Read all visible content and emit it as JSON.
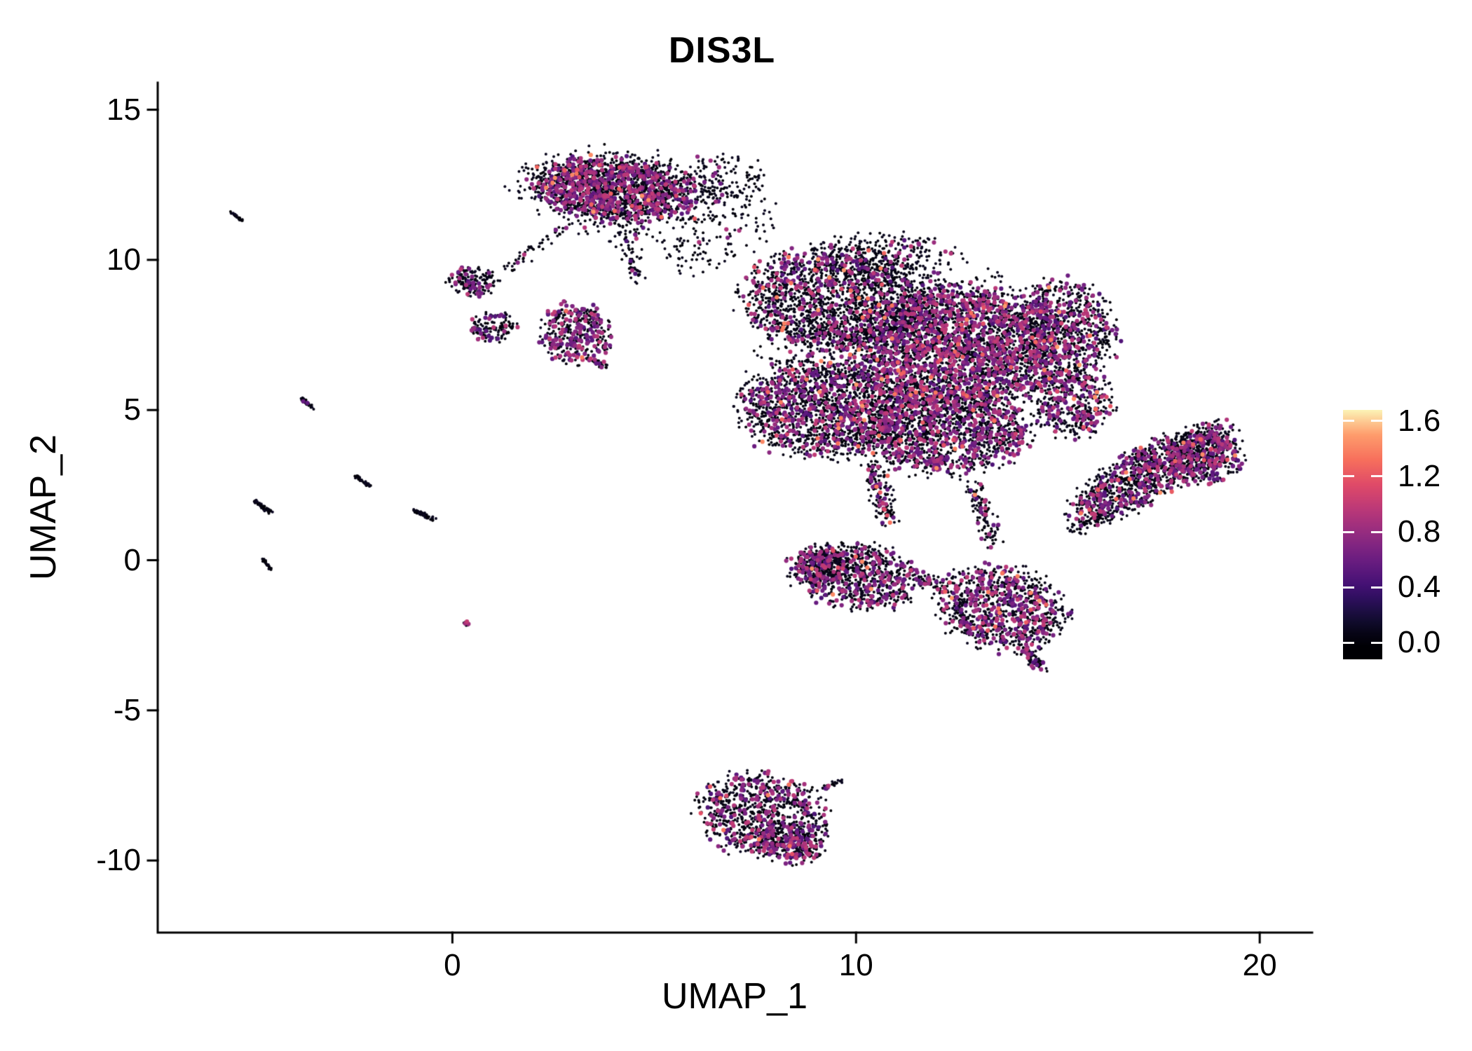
{
  "title": "DIS3L",
  "axes": {
    "x": {
      "label": "UMAP_1",
      "min": -7.3,
      "max": 21.3,
      "ticks": [
        {
          "v": 0,
          "label": "0"
        },
        {
          "v": 10,
          "label": "10"
        },
        {
          "v": 20,
          "label": "20"
        }
      ]
    },
    "y": {
      "label": "UMAP_2",
      "min": -12.4,
      "max": 15.9,
      "ticks": [
        {
          "v": 15,
          "label": "15"
        },
        {
          "v": 10,
          "label": "10"
        },
        {
          "v": 5,
          "label": "5"
        },
        {
          "v": 0,
          "label": "0"
        },
        {
          "v": -5,
          "label": "-5"
        },
        {
          "v": -10,
          "label": "-10"
        }
      ]
    }
  },
  "colorbar": {
    "vmin": -0.12,
    "vmax": 1.68,
    "value_scale_max": 1.7,
    "ticks": [
      {
        "v": 1.6,
        "label": "1.6"
      },
      {
        "v": 1.2,
        "label": "1.2"
      },
      {
        "v": 0.8,
        "label": "0.8"
      },
      {
        "v": 0.4,
        "label": "0.4"
      },
      {
        "v": 0.0,
        "label": "0.0"
      }
    ],
    "stops": [
      [
        0.0,
        "#000004"
      ],
      [
        0.111,
        "#140e36"
      ],
      [
        0.222,
        "#3b0f70"
      ],
      [
        0.333,
        "#641a80"
      ],
      [
        0.444,
        "#8c2981"
      ],
      [
        0.556,
        "#b73779"
      ],
      [
        0.667,
        "#de4968"
      ],
      [
        0.778,
        "#f7705c"
      ],
      [
        0.889,
        "#fe9f6d"
      ],
      [
        1.0,
        "#fcfdbf"
      ]
    ]
  },
  "chart_data": {
    "type": "scatter",
    "title": "DIS3L",
    "xlabel": "UMAP_1",
    "ylabel": "UMAP_2",
    "xlim": [
      -7.3,
      21.3
    ],
    "ylim": [
      -12.4,
      15.9
    ],
    "x_ticks": [
      0,
      10,
      20
    ],
    "y_ticks": [
      15,
      10,
      5,
      0,
      -5,
      -10
    ],
    "colorbar_ticks": [
      1.6,
      1.2,
      0.8,
      0.4,
      0.0
    ],
    "palette": "magma",
    "legend_position": "right",
    "grid": false,
    "note": "UMAP feature plot of gene expression; ~18000 cells approximated by generative clusters below",
    "seed": 20240613,
    "point_radius": {
      "low": 2.0,
      "colored": 3.1
    },
    "expression_bins": {
      "low": [
        0,
        0.12
      ],
      "mid": [
        0.45,
        1.0
      ],
      "high": [
        1.05,
        1.5
      ]
    },
    "clusters": [
      {
        "shape": "ellipse",
        "cx": 4.0,
        "cy": 12.35,
        "rx": 1.9,
        "ry": 1.0,
        "rot": -8,
        "n": 1500,
        "p_mid": 0.3,
        "p_hi": 0.015
      },
      {
        "shape": "ellipse",
        "cx": 4.2,
        "cy": 12.2,
        "rx": 2.6,
        "ry": 1.5,
        "rot": -8,
        "n": 420,
        "p_mid": 0.06,
        "p_hi": 0.003
      },
      {
        "shape": "ellipse",
        "cx": 6.7,
        "cy": 12.7,
        "rx": 1.0,
        "ry": 0.85,
        "rot": 0,
        "n": 120,
        "p_mid": 0.05,
        "p_hi": 0
      },
      {
        "shape": "segment",
        "x1": 4.2,
        "y1": 11.3,
        "x2": 4.6,
        "y2": 9.4,
        "jitter": 0.3,
        "n": 70,
        "p_mid": 0.12,
        "p_hi": 0
      },
      {
        "shape": "ellipse",
        "cx": 0.55,
        "cy": 9.3,
        "rx": 0.62,
        "ry": 0.48,
        "rot": 0,
        "n": 160,
        "p_mid": 0.18,
        "p_hi": 0.012
      },
      {
        "shape": "ellipse",
        "cx": 1.0,
        "cy": 7.75,
        "rx": 0.55,
        "ry": 0.5,
        "rot": 0,
        "n": 130,
        "p_mid": 0.15,
        "p_hi": 0
      },
      {
        "shape": "segment",
        "x1": 1.3,
        "y1": 9.7,
        "x2": 3.0,
        "y2": 11.3,
        "jitter": 0.22,
        "n": 50,
        "p_mid": 0.06,
        "p_hi": 0
      },
      {
        "shape": "ellipse",
        "cx": 3.05,
        "cy": 7.55,
        "rx": 0.82,
        "ry": 0.98,
        "rot": 10,
        "n": 380,
        "p_mid": 0.38,
        "p_hi": 0.01
      },
      {
        "shape": "segment",
        "x1": 3.4,
        "y1": 6.7,
        "x2": 3.85,
        "y2": 6.4,
        "jitter": 0.12,
        "n": 25,
        "p_mid": 0.3,
        "p_hi": 0
      },
      {
        "shape": "ellipse",
        "cx": 9.6,
        "cy": 8.7,
        "rx": 2.3,
        "ry": 1.7,
        "rot": 0,
        "n": 1900,
        "p_mid": 0.16,
        "p_hi": 0.012
      },
      {
        "shape": "ellipse",
        "cx": 12.6,
        "cy": 7.1,
        "rx": 2.5,
        "ry": 1.9,
        "rot": 0,
        "n": 2700,
        "p_mid": 0.3,
        "p_hi": 0.02
      },
      {
        "shape": "ellipse",
        "cx": 9.2,
        "cy": 5.1,
        "rx": 2.0,
        "ry": 1.6,
        "rot": 0,
        "n": 1500,
        "p_mid": 0.22,
        "p_hi": 0.015
      },
      {
        "shape": "ellipse",
        "cx": 12.2,
        "cy": 4.3,
        "rx": 2.0,
        "ry": 1.4,
        "rot": 0,
        "n": 1300,
        "p_mid": 0.26,
        "p_hi": 0.015
      },
      {
        "shape": "ellipse",
        "cx": 15.2,
        "cy": 7.8,
        "rx": 1.15,
        "ry": 1.5,
        "rot": 20,
        "n": 650,
        "p_mid": 0.22,
        "p_hi": 0.02
      },
      {
        "shape": "ellipse",
        "cx": 15.4,
        "cy": 5.3,
        "rx": 0.95,
        "ry": 1.15,
        "rot": 0,
        "n": 420,
        "p_mid": 0.28,
        "p_hi": 0.03
      },
      {
        "shape": "ellipse",
        "cx": 11.6,
        "cy": 6.6,
        "rx": 3.8,
        "ry": 3.1,
        "rot": 0,
        "n": 1000,
        "p_mid": 0.1,
        "p_hi": 0.008
      },
      {
        "shape": "ellipse",
        "cx": 10.8,
        "cy": 10.3,
        "rx": 1.8,
        "ry": 0.6,
        "rot": 0,
        "n": 170,
        "p_mid": 0.08,
        "p_hi": 0
      },
      {
        "shape": "segment",
        "x1": 10.4,
        "y1": 3.2,
        "x2": 10.8,
        "y2": 1.3,
        "jitter": 0.35,
        "n": 150,
        "p_mid": 0.18,
        "p_hi": 0.05
      },
      {
        "shape": "segment",
        "x1": 12.9,
        "y1": 2.6,
        "x2": 13.4,
        "y2": 0.6,
        "jitter": 0.3,
        "n": 110,
        "p_mid": 0.2,
        "p_hi": 0.02
      },
      {
        "shape": "ellipse",
        "cx": 10.0,
        "cy": -0.5,
        "rx": 1.55,
        "ry": 1.05,
        "rot": -15,
        "n": 800,
        "p_mid": 0.22,
        "p_hi": 0.012
      },
      {
        "shape": "ellipse",
        "cx": 9.2,
        "cy": -0.2,
        "rx": 0.7,
        "ry": 0.6,
        "rot": 0,
        "n": 280,
        "p_mid": 0.22,
        "p_hi": 0
      },
      {
        "shape": "segment",
        "x1": 11.3,
        "y1": -0.4,
        "x2": 12.3,
        "y2": -1.0,
        "jitter": 0.25,
        "n": 70,
        "p_mid": 0.15,
        "p_hi": 0
      },
      {
        "shape": "ellipse",
        "cx": 13.6,
        "cy": -1.6,
        "rx": 1.55,
        "ry": 1.3,
        "rot": -25,
        "n": 950,
        "p_mid": 0.28,
        "p_hi": 0.015
      },
      {
        "shape": "segment",
        "x1": 14.1,
        "y1": -2.9,
        "x2": 14.6,
        "y2": -3.6,
        "jitter": 0.2,
        "n": 60,
        "p_mid": 0.25,
        "p_hi": 0
      },
      {
        "shape": "ellipse",
        "cx": 17.3,
        "cy": 2.9,
        "rx": 2.35,
        "ry": 0.8,
        "rot": 38,
        "n": 1150,
        "p_mid": 0.26,
        "p_hi": 0.02
      },
      {
        "shape": "ellipse",
        "cx": 18.7,
        "cy": 3.4,
        "rx": 0.95,
        "ry": 0.8,
        "rot": 20,
        "n": 330,
        "p_mid": 0.28,
        "p_hi": 0.02
      },
      {
        "shape": "segment",
        "x1": 15.3,
        "y1": 0.9,
        "x2": 16.3,
        "y2": 1.6,
        "jitter": 0.3,
        "n": 55,
        "p_mid": 0.1,
        "p_hi": 0
      },
      {
        "shape": "ellipse",
        "cx": 7.7,
        "cy": -8.5,
        "rx": 1.55,
        "ry": 1.3,
        "rot": -20,
        "n": 900,
        "p_mid": 0.24,
        "p_hi": 0.01
      },
      {
        "shape": "ellipse",
        "cx": 8.4,
        "cy": -9.4,
        "rx": 0.85,
        "ry": 0.6,
        "rot": -30,
        "n": 240,
        "p_mid": 0.3,
        "p_hi": 0.01
      },
      {
        "shape": "segment",
        "x1": 9.2,
        "y1": -7.6,
        "x2": 9.7,
        "y2": -7.3,
        "jitter": 0.1,
        "n": 22,
        "p_mid": 0.05,
        "p_hi": 0
      },
      {
        "shape": "segment",
        "x1": -5.5,
        "y1": 11.6,
        "x2": -5.2,
        "y2": 11.3,
        "jitter": 0.05,
        "n": 28,
        "p_mid": 0,
        "p_hi": 0
      },
      {
        "shape": "segment",
        "x1": -3.75,
        "y1": 5.4,
        "x2": -3.45,
        "y2": 5.05,
        "jitter": 0.06,
        "n": 40,
        "p_mid": 0.02,
        "p_hi": 0
      },
      {
        "shape": "segment",
        "x1": -2.4,
        "y1": 2.8,
        "x2": -2.05,
        "y2": 2.45,
        "jitter": 0.06,
        "n": 40,
        "p_mid": 0,
        "p_hi": 0
      },
      {
        "shape": "segment",
        "x1": -4.9,
        "y1": 1.95,
        "x2": -4.5,
        "y2": 1.6,
        "jitter": 0.07,
        "n": 55,
        "p_mid": 0,
        "p_hi": 0
      },
      {
        "shape": "segment",
        "x1": -0.95,
        "y1": 1.65,
        "x2": -0.45,
        "y2": 1.35,
        "jitter": 0.07,
        "n": 70,
        "p_mid": 0,
        "p_hi": 0
      },
      {
        "shape": "segment",
        "x1": -4.7,
        "y1": 0.05,
        "x2": -4.5,
        "y2": -0.3,
        "jitter": 0.05,
        "n": 28,
        "p_mid": 0,
        "p_hi": 0
      },
      {
        "shape": "ellipse",
        "cx": 0.35,
        "cy": -2.1,
        "rx": 0.08,
        "ry": 0.08,
        "rot": 0,
        "n": 8,
        "p_mid": 0.3,
        "p_hi": 0
      },
      {
        "shape": "ellipse",
        "cx": 6.9,
        "cy": 11.5,
        "rx": 1.2,
        "ry": 1.3,
        "rot": 0,
        "n": 100,
        "p_mid": 0.04,
        "p_hi": 0
      },
      {
        "shape": "ellipse",
        "cx": 6.0,
        "cy": 10.2,
        "rx": 0.9,
        "ry": 0.7,
        "rot": 0,
        "n": 55,
        "p_mid": 0.04,
        "p_hi": 0
      }
    ]
  }
}
